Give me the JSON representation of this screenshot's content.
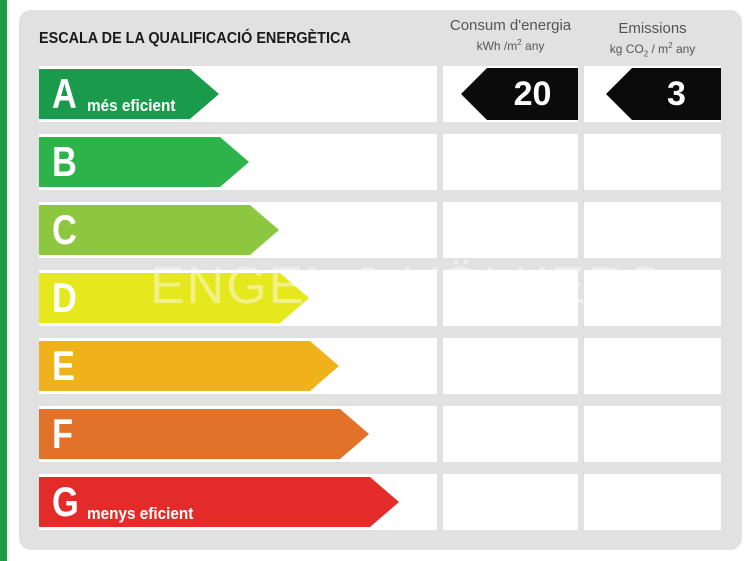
{
  "title": "ESCALA DE LA QUALIFICACIÓ ENERGÈTICA",
  "consumption_header": {
    "line1": "Consum d'energia",
    "line2_prefix": "kWh /m",
    "line2_sup": "2",
    "line2_suffix": " any"
  },
  "emissions_header": {
    "line1": "Emissions",
    "line2_prefix": "kg CO",
    "line2_sub": "2",
    "line2_mid": " / m",
    "line2_sup": "2",
    "line2_suffix": " any"
  },
  "classes": [
    {
      "letter": "A",
      "label": "més eficient",
      "color": "#1a9a4b"
    },
    {
      "letter": "B",
      "label": "",
      "color": "#2db34a"
    },
    {
      "letter": "C",
      "label": "",
      "color": "#8dc63f"
    },
    {
      "letter": "D",
      "label": "",
      "color": "#e6e81e"
    },
    {
      "letter": "E",
      "label": "",
      "color": "#f0b21b"
    },
    {
      "letter": "F",
      "label": "",
      "color": "#e2722a"
    },
    {
      "letter": "G",
      "label": "menys eficient",
      "color": "#e32b2a"
    }
  ],
  "consumption": {
    "class": "A",
    "value": "20"
  },
  "emissions": {
    "class": "A",
    "value": "3"
  },
  "watermark": "ENGEL & VÖLKERS",
  "colors": {
    "page_background": "#e1e1e1",
    "rating_badge": "#0b0b0b",
    "accent_stripe": "#1f9d4a"
  }
}
